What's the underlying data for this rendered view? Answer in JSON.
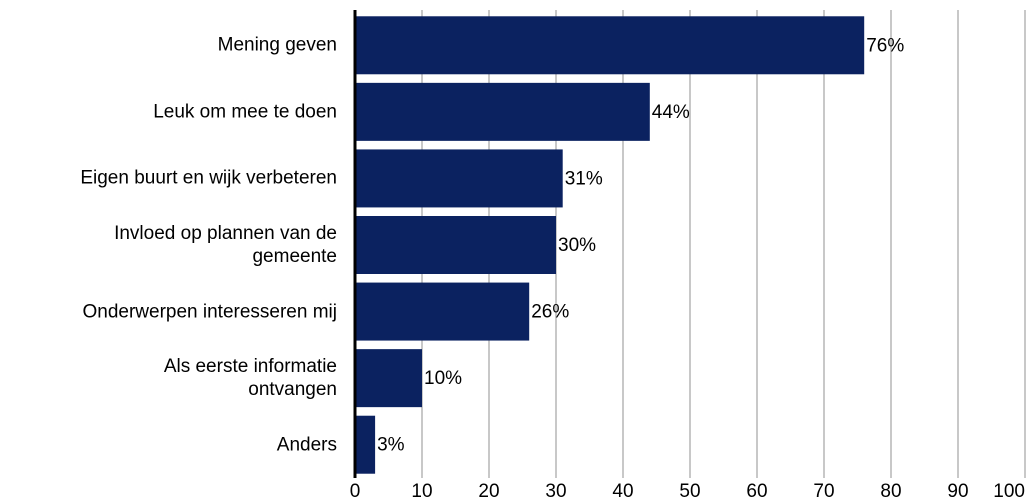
{
  "chart_data": {
    "type": "bar",
    "orientation": "horizontal",
    "categories": [
      "Mening geven",
      "Leuk om mee te doen",
      "Eigen buurt en wijk verbeteren",
      "Invloed op plannen van de\ngemeente",
      "Onderwerpen interesseren mij",
      "Als eerste informatie\nontvangen",
      "Anders"
    ],
    "values": [
      76,
      44,
      31,
      30,
      26,
      10,
      3
    ],
    "value_labels": [
      "76%",
      "44%",
      "31%",
      "30%",
      "26%",
      "10%",
      "3%"
    ],
    "color": "#0b2260",
    "xlim": [
      0,
      100
    ],
    "xticks": [
      0,
      10,
      20,
      30,
      40,
      50,
      60,
      70,
      80,
      90,
      100
    ],
    "grid": true
  }
}
